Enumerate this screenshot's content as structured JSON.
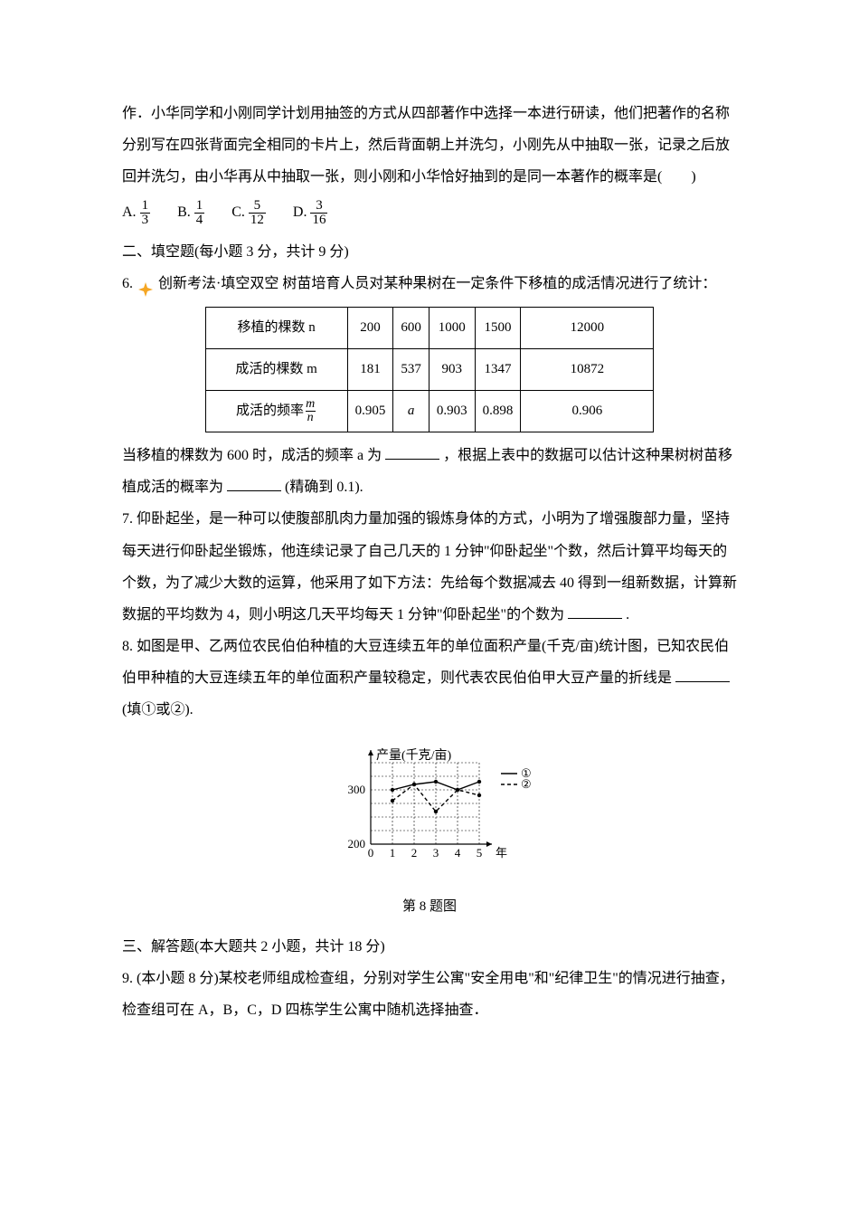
{
  "page": {
    "text_color": "#000000",
    "background": "#ffffff",
    "p1": "作．小华同学和小刚同学计划用抽签的方式从四部著作中选择一本进行研读，他们把著作的名称分别写在四张背面完全相同的卡片上，然后背面朝上并洗匀，小刚先从中抽取一张，记录之后放回并洗匀，由小华再从中抽取一张，则小刚和小华恰好抽到的是同一本著作的概率是(　　)",
    "opts": {
      "A": {
        "label": "A. ",
        "n": "1",
        "d": "3"
      },
      "B": {
        "label": "B. ",
        "n": "1",
        "d": "4"
      },
      "C": {
        "label": "C. ",
        "n": "5",
        "d": "12"
      },
      "D": {
        "label": "D. ",
        "n": "3",
        "d": "16"
      }
    },
    "sec2": "二、填空题(每小题 3 分，共计 9 分)",
    "q6_pre": "6. ",
    "q6_tag": "创新考法·填空双空",
    "q6_text": " 树苗培育人员对某种果树在一定条件下移植的成活情况进行了统计：",
    "table": {
      "r1": [
        "移植的棵数 n",
        "200",
        "600",
        "1000",
        "1500",
        "12000"
      ],
      "r2": [
        "成活的棵数 m",
        "181",
        "537",
        "903",
        "1347",
        "10872"
      ],
      "r3_label": "成活的频率",
      "r3": [
        "0.905",
        "a",
        "0.903",
        "0.898",
        "0.906"
      ]
    },
    "q6_after1": "当移植的棵数为 600 时，成活的频率 a 为",
    "q6_after2": "，根据上表中的数据可以估计这种果树树苗移植成活的概率为",
    "q6_after3": "(精确到 0.1).",
    "q7": "7. 仰卧起坐，是一种可以使腹部肌肉力量加强的锻炼身体的方式，小明为了增强腹部力量，坚持每天进行仰卧起坐锻炼，他连续记录了自己几天的 1 分钟\"仰卧起坐\"个数，然后计算平均每天的个数，为了减少大数的运算，他采用了如下方法：先给每个数据减去 40 得到一组新数据，计算新数据的平均数为 4，则小明这几天平均每天 1 分钟\"仰卧起坐\"的个数为",
    "q7_end": ".",
    "q8_1": "8. 如图是甲、乙两位农民伯伯种植的大豆连续五年的单位面积产量(千克/亩)统计图，已知农民伯伯甲种植的大豆连续五年的单位面积产量较稳定，则代表农民伯伯甲大豆产量的折线是",
    "q8_2": "(填①或②).",
    "chart": {
      "title": "产量(千克/亩)",
      "legend": [
        "①",
        "②"
      ],
      "y_ticks": [
        200,
        300
      ],
      "y_min": 200,
      "y_max": 350,
      "x_ticks": [
        "0",
        "1",
        "2",
        "3",
        "4",
        "5"
      ],
      "x_label": "年",
      "series1": {
        "color": "#000000",
        "dash": "0",
        "points": [
          [
            1,
            300
          ],
          [
            2,
            310
          ],
          [
            3,
            315
          ],
          [
            4,
            300
          ],
          [
            5,
            315
          ]
        ]
      },
      "series2": {
        "color": "#000000",
        "dash": "4 3",
        "points": [
          [
            1,
            280
          ],
          [
            2,
            310
          ],
          [
            3,
            260
          ],
          [
            4,
            300
          ],
          [
            5,
            290
          ]
        ]
      },
      "grid_color": "#000000"
    },
    "caption8": "第 8 题图",
    "sec3": "三、解答题(本大题共 2 小题，共计 18 分)",
    "q9": "9. (本小题 8 分)某校老师组成检查组，分别对学生公寓\"安全用电\"和\"纪律卫生\"的情况进行抽查，检查组可在 A，B，C，D 四栋学生公寓中随机选择抽查．",
    "sparkle_color": "#f5a623"
  }
}
